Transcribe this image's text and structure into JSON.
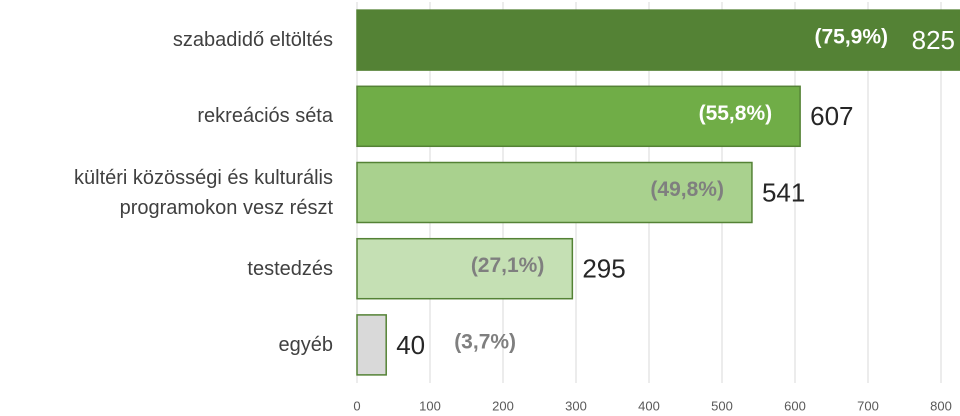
{
  "chart_data": {
    "type": "bar",
    "orientation": "horizontal",
    "categories": [
      "szabadidő eltöltés",
      "rekreációs séta",
      "kültéri közösségi és kulturális programokon vesz részt",
      "testedzés",
      "egyéb"
    ],
    "values": [
      825,
      607,
      541,
      295,
      40
    ],
    "share_labels": [
      "(75,9%)",
      "(55,8%)",
      "(49,8%)",
      "(27,1%)",
      "(3,7%)"
    ],
    "colors": [
      "#548235",
      "#70ad47",
      "#a9d18e",
      "#c5e0b4",
      "#d9d9d9"
    ],
    "border_colors": [
      "#548235",
      "#548235",
      "#548235",
      "#548235",
      "#548235"
    ],
    "share_label_colors": [
      "#ffffff",
      "#ffffff",
      "#7f7f7f",
      "#7f7f7f",
      "#7f7f7f"
    ],
    "value_label_colors": [
      "#ffffff",
      "#262626",
      "#262626",
      "#262626",
      "#262626"
    ],
    "xlim": [
      0,
      826
    ],
    "xticks": [
      0,
      100,
      200,
      300,
      400,
      500,
      600,
      700,
      800
    ],
    "grid": true
  }
}
